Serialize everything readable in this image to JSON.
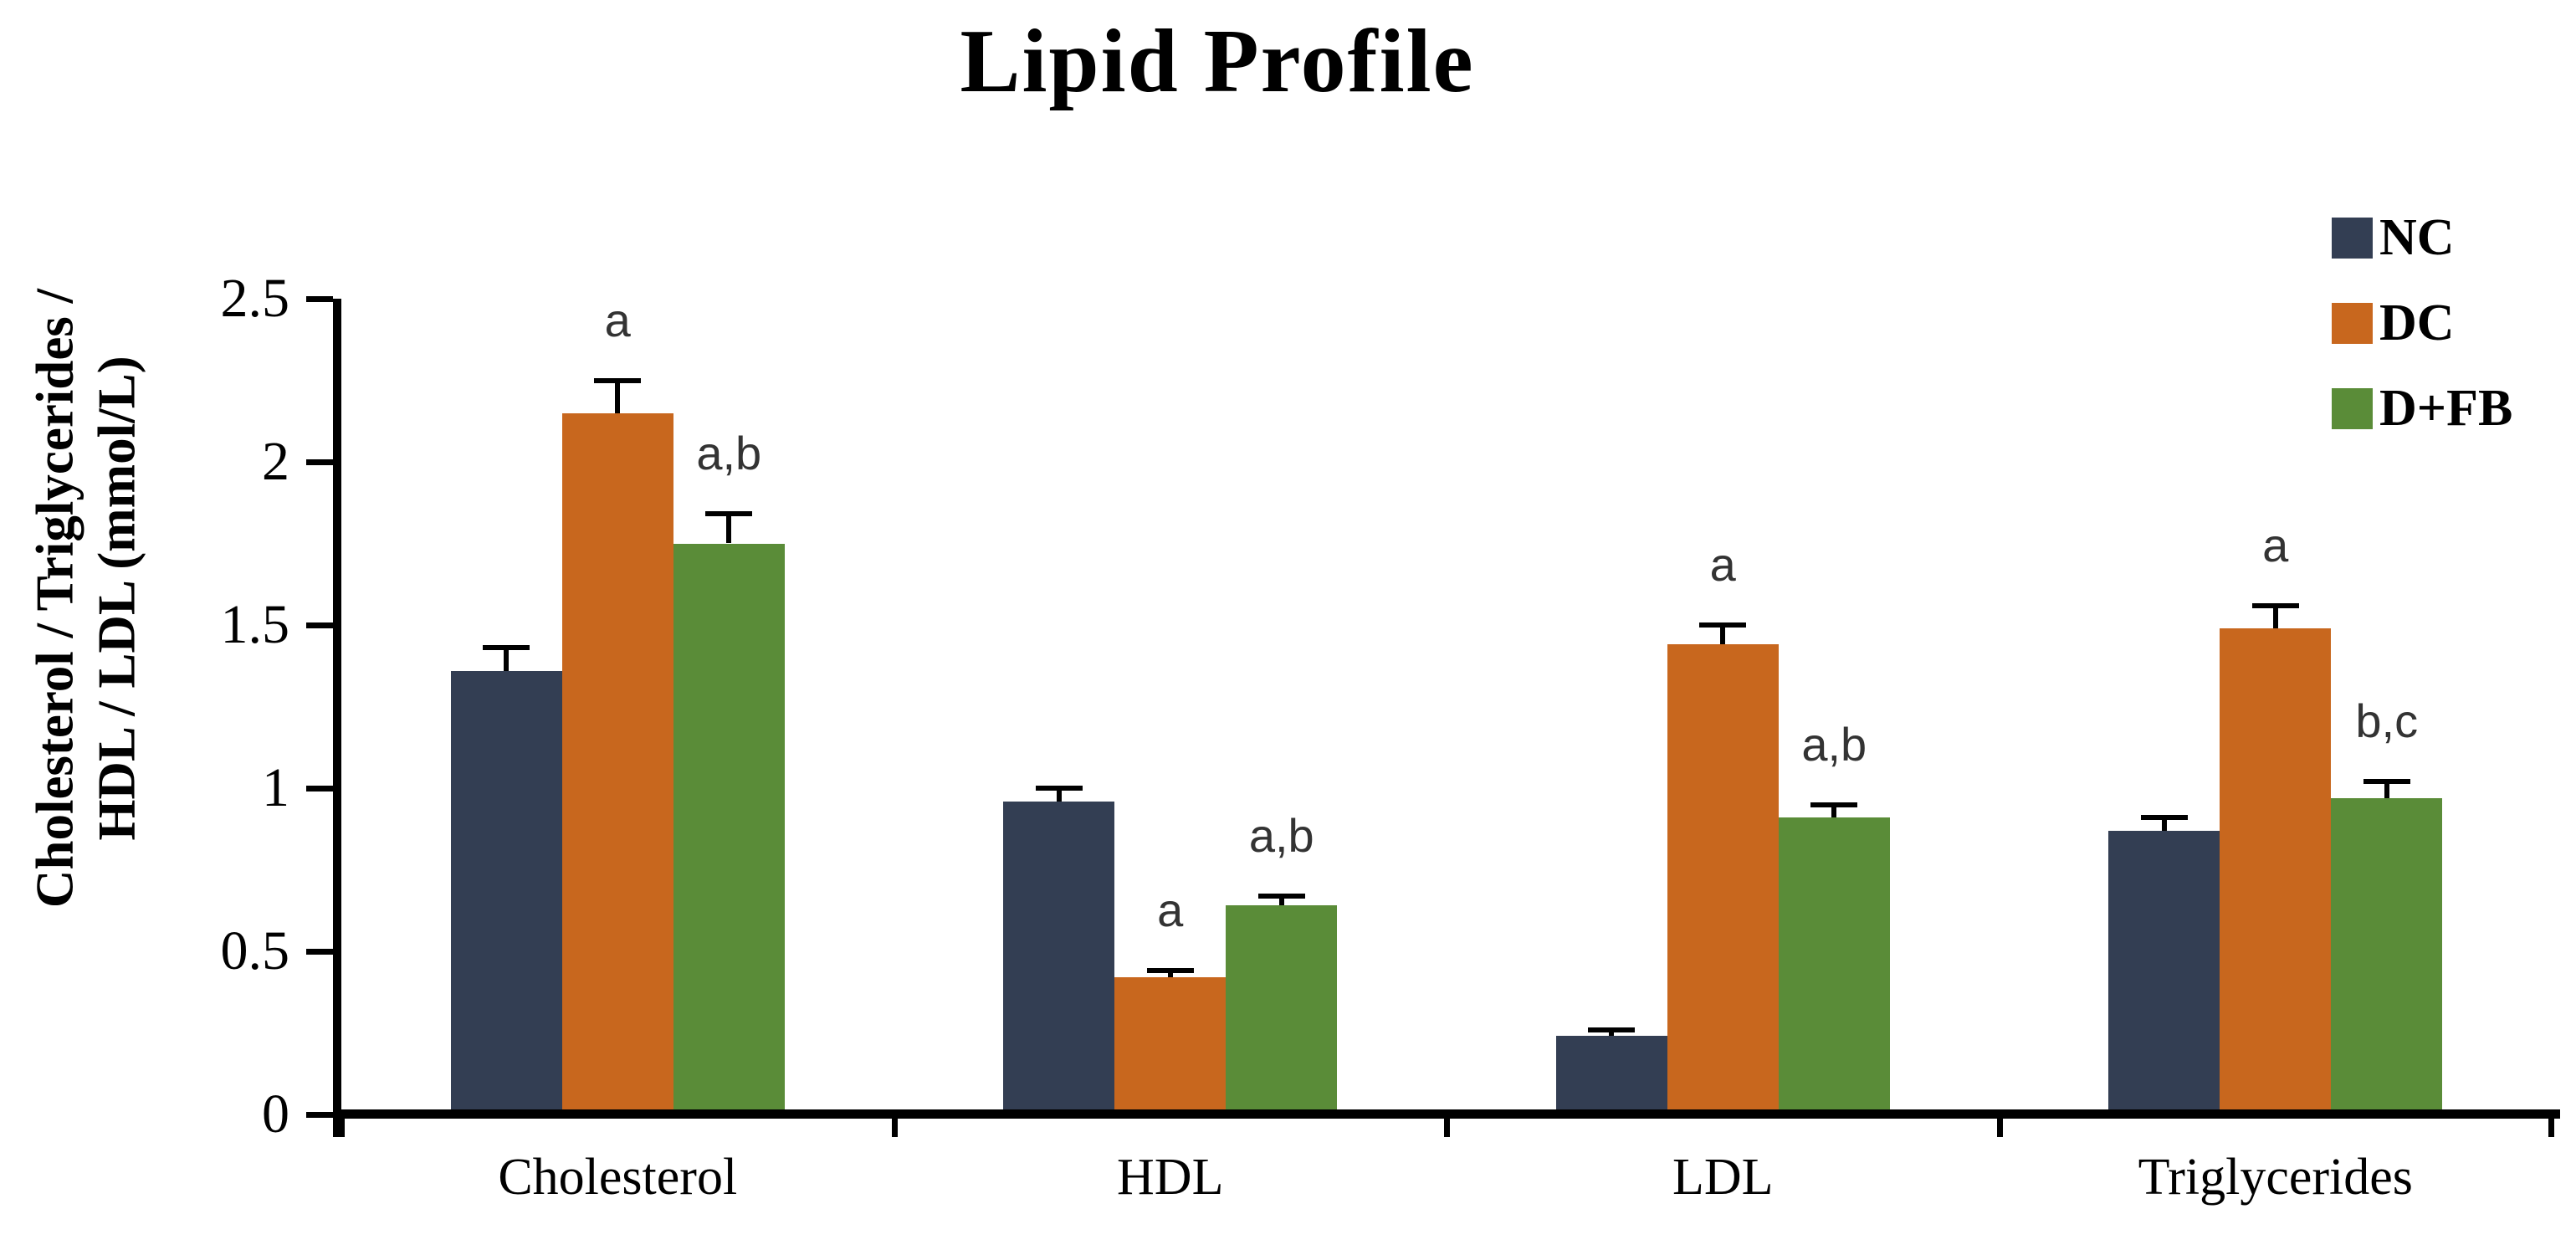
{
  "chart_data": {
    "type": "bar",
    "title": "Lipid Profile",
    "ylabel": "Cholesterol / Triglycerides / HDL / LDL (mmol/L)",
    "ylabel_lines": [
      "Cholesterol / Triglycerides /",
      "HDL / LDL (mmol/L)"
    ],
    "categories": [
      "Cholesterol",
      "HDL",
      "LDL",
      "Triglycerides"
    ],
    "series": [
      {
        "name": "NC",
        "color": "#333E53",
        "values": [
          1.36,
          0.96,
          0.24,
          0.87
        ],
        "errors": [
          0.07,
          0.04,
          0.02,
          0.04
        ],
        "annotations": [
          "",
          "",
          "",
          ""
        ]
      },
      {
        "name": "DC",
        "color": "#C8671E",
        "values": [
          2.15,
          0.42,
          1.44,
          1.49
        ],
        "errors": [
          0.1,
          0.02,
          0.06,
          0.07
        ],
        "annotations": [
          "a",
          "a",
          "a",
          "a"
        ]
      },
      {
        "name": "D+FB",
        "color": "#5A8C38",
        "values": [
          1.75,
          0.64,
          0.91,
          0.97
        ],
        "errors": [
          0.09,
          0.03,
          0.04,
          0.05
        ],
        "annotations": [
          "a,b",
          "a,b",
          "a,b",
          "b,c"
        ]
      }
    ],
    "yticks": [
      "0",
      "0.5",
      "1",
      "1.5",
      "2",
      "2.5"
    ],
    "ylim": [
      0,
      2.5
    ],
    "grid": false,
    "legend_position": "top-right",
    "error_bars": "upper",
    "axis_color": "#000000",
    "annotation_color": "#333333",
    "background_color": "#ffffff"
  }
}
